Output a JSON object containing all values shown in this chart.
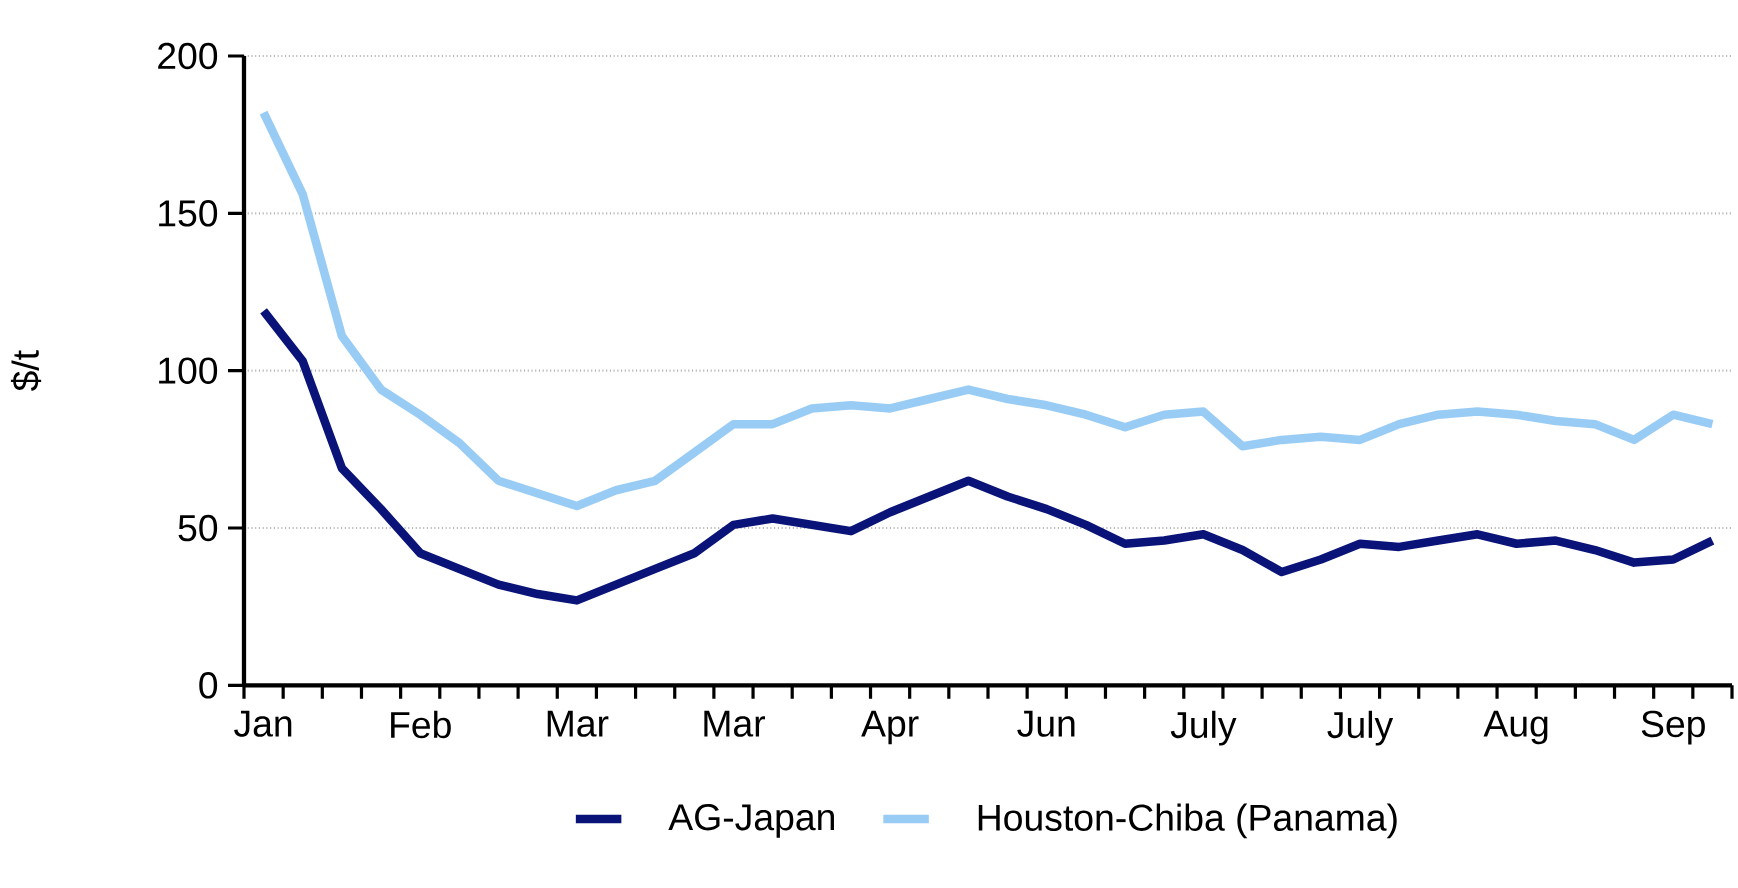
{
  "chart_data": {
    "type": "line",
    "ylabel": "$/t",
    "categories": [
      "Jan",
      null,
      null,
      null,
      "Feb",
      null,
      null,
      null,
      "Mar",
      null,
      null,
      null,
      "Mar",
      null,
      null,
      null,
      "Apr",
      null,
      null,
      null,
      "Jun",
      null,
      null,
      null,
      "July",
      null,
      null,
      null,
      "July",
      null,
      null,
      null,
      "Aug",
      null,
      null,
      null,
      "Sep",
      null
    ],
    "series": [
      {
        "name": "AG-Japan",
        "color": "#0a1478",
        "values": [
          119,
          103,
          69,
          56,
          42,
          37,
          32,
          29,
          27,
          32,
          37,
          42,
          51,
          53,
          51,
          49,
          55,
          60,
          65,
          60,
          56,
          51,
          45,
          46,
          48,
          43,
          36,
          40,
          45,
          44,
          46,
          48,
          45,
          46,
          43,
          39,
          40,
          46
        ]
      },
      {
        "name": "Houston-Chiba (Panama)",
        "color": "#99ccf5",
        "values": [
          182,
          156,
          111,
          94,
          86,
          77,
          65,
          61,
          57,
          62,
          65,
          74,
          83,
          83,
          88,
          89,
          88,
          91,
          94,
          91,
          89,
          86,
          82,
          86,
          87,
          76,
          78,
          79,
          78,
          83,
          86,
          87,
          86,
          84,
          83,
          78,
          86,
          83
        ]
      }
    ],
    "ylim": [
      0,
      200
    ],
    "yticks": [
      0,
      50,
      100,
      150,
      200
    ],
    "grid": "y",
    "legend": "bottom",
    "line_style": "solid",
    "marker": "none"
  }
}
